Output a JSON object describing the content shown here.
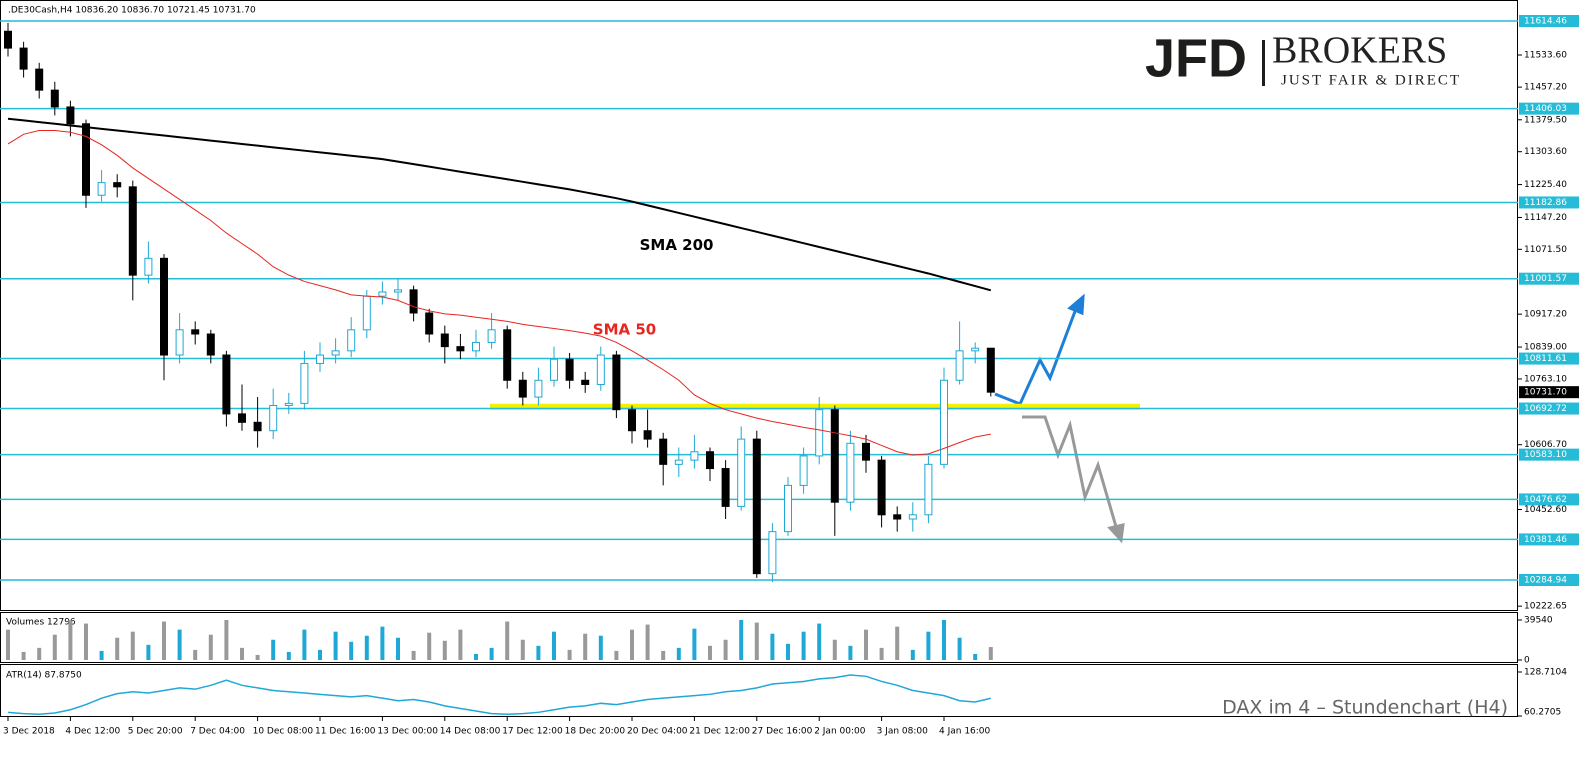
{
  "logo": {
    "name": "JFD",
    "brand": "BROKERS",
    "tagline": "JUST FAIR & DIRECT"
  },
  "chart_data": [
    {
      "type": "candlestick",
      "title": ".DE30Cash,H4  10836.20 10836.70 10721.45 10731.70",
      "caption": "DAX im 4 – Stundenchart (H4)",
      "categories": [
        "3 Dec 2018",
        null,
        null,
        null,
        "4 Dec 12:00",
        null,
        null,
        null,
        "5 Dec 20:00",
        null,
        null,
        null,
        "7 Dec 04:00",
        null,
        null,
        null,
        "10 Dec 08:00",
        null,
        null,
        null,
        "11 Dec 16:00",
        null,
        null,
        null,
        "13 Dec 00:00",
        null,
        null,
        null,
        "14 Dec 08:00",
        null,
        null,
        null,
        "17 Dec 12:00",
        null,
        null,
        null,
        "18 Dec 20:00",
        null,
        null,
        null,
        "20 Dec 04:00",
        null,
        null,
        null,
        "21 Dec 12:00",
        null,
        null,
        null,
        "27 Dec 16:00",
        null,
        null,
        null,
        "2 Jan 00:00",
        null,
        null,
        null,
        "3 Jan 08:00",
        null,
        null,
        null,
        "4 Jan 16:00",
        null,
        null,
        null
      ],
      "open": [
        11590,
        11550,
        11500,
        11450,
        11410,
        11370,
        11200,
        11230,
        11220,
        11010,
        11050,
        10820,
        10880,
        10870,
        10820,
        10680,
        10660,
        10640,
        10700,
        10705,
        10800,
        10820,
        10830,
        10880,
        10960,
        10970,
        10975,
        10920,
        10870,
        10840,
        10830,
        10850,
        10880,
        10760,
        10720,
        10760,
        10810,
        10760,
        10750,
        10820,
        10690,
        10640,
        10620,
        10560,
        10570,
        10590,
        10550,
        10460,
        10620,
        10300,
        10400,
        10510,
        10580,
        10690,
        10470,
        10610,
        10570,
        10440,
        10430,
        10440,
        10560,
        10760,
        10830,
        10836.2
      ],
      "high": [
        11610,
        11565,
        11515,
        11470,
        11425,
        11380,
        11260,
        11250,
        11235,
        11090,
        11060,
        10920,
        10900,
        10880,
        10830,
        10750,
        10720,
        10740,
        10730,
        10830,
        10850,
        10860,
        10910,
        10975,
        10995,
        11000,
        10985,
        10930,
        10890,
        10870,
        10880,
        10920,
        10890,
        10780,
        10790,
        10840,
        10825,
        10780,
        10840,
        10830,
        10700,
        10690,
        10635,
        10600,
        10630,
        10600,
        10570,
        10650,
        10640,
        10420,
        10530,
        10600,
        10720,
        10700,
        10640,
        10630,
        10580,
        10460,
        10470,
        10580,
        10790,
        10900,
        10850,
        10836.7
      ],
      "low": [
        11530,
        11480,
        11430,
        11390,
        11340,
        11170,
        11185,
        11195,
        10950,
        10990,
        10760,
        10800,
        10845,
        10800,
        10650,
        10640,
        10600,
        10620,
        10680,
        10690,
        10780,
        10800,
        10815,
        10860,
        10940,
        10950,
        10900,
        10850,
        10800,
        10810,
        10815,
        10835,
        10740,
        10700,
        10700,
        10745,
        10740,
        10730,
        10735,
        10670,
        10610,
        10600,
        10510,
        10530,
        10550,
        10520,
        10430,
        10450,
        10290,
        10280,
        10390,
        10490,
        10560,
        10390,
        10450,
        10540,
        10410,
        10400,
        10400,
        10420,
        10550,
        10750,
        10800,
        10721.45
      ],
      "close": [
        11550,
        11500,
        11450,
        11410,
        11370,
        11200,
        11230,
        11220,
        11010,
        11050,
        10820,
        10880,
        10870,
        10820,
        10680,
        10660,
        10640,
        10700,
        10705,
        10800,
        10820,
        10830,
        10880,
        10960,
        10970,
        10975,
        10920,
        10870,
        10840,
        10830,
        10850,
        10880,
        10760,
        10720,
        10760,
        10810,
        10760,
        10750,
        10820,
        10690,
        10640,
        10620,
        10560,
        10570,
        10590,
        10550,
        10460,
        10620,
        10300,
        10400,
        10510,
        10580,
        10690,
        10470,
        10610,
        10570,
        10440,
        10430,
        10440,
        10560,
        10760,
        10830,
        10836.2,
        10731.7
      ],
      "up_color": "#ffffff",
      "up_stroke": "#1fa8d6",
      "down_color": "#000000",
      "series": [
        {
          "name": "SMA 200",
          "color": "#000000",
          "values": [
            11382,
            11378,
            11374,
            11370,
            11366,
            11362,
            11358,
            11354,
            11350,
            11346,
            11342,
            11338,
            11334,
            11330,
            11326,
            11322,
            11318,
            11314,
            11310,
            11306,
            11302,
            11298,
            11294,
            11290,
            11286,
            11280,
            11274,
            11268,
            11262,
            11256,
            11250,
            11244,
            11238,
            11232,
            11226,
            11220,
            11214,
            11207,
            11200,
            11193,
            11185,
            11176,
            11167,
            11158,
            11149,
            11140,
            11131,
            11122,
            11113,
            11104,
            11095,
            11086,
            11077,
            11068,
            11059,
            11050,
            11041,
            11032,
            11023,
            11014,
            11004,
            10994,
            10984,
            10974
          ]
        },
        {
          "name": "SMA 50",
          "color": "#e8251f",
          "values": [
            11322,
            11345,
            11354,
            11354,
            11350,
            11340,
            11320,
            11295,
            11265,
            11240,
            11215,
            11190,
            11165,
            11140,
            11110,
            11085,
            11060,
            11030,
            11010,
            10995,
            10985,
            10975,
            10963,
            10960,
            10958,
            10950,
            10935,
            10925,
            10918,
            10915,
            10910,
            10905,
            10900,
            10893,
            10888,
            10883,
            10878,
            10872,
            10865,
            10850,
            10830,
            10808,
            10785,
            10760,
            10725,
            10705,
            10690,
            10680,
            10670,
            10662,
            10655,
            10648,
            10642,
            10635,
            10628,
            10620,
            10605,
            10590,
            10582,
            10585,
            10598,
            10612,
            10625,
            10632
          ]
        }
      ],
      "levels": [
        11614.46,
        11406.03,
        11182.86,
        11001.57,
        10811.61,
        10692.72,
        {
          "value": 10583.1,
          "label": "10583.10"
        },
        10476.62,
        10381.46,
        10284.94
      ],
      "level_color": "#26bcd8",
      "support_zone": 10697,
      "zone_color": "#f2f200",
      "last_price": {
        "value": 10731.7,
        "label": "10731.70"
      },
      "ylim": [
        10213.6,
        11664.4
      ],
      "yticks": [
        {
          "value": 11533.6,
          "label": "11533.60"
        },
        {
          "value": 11457.2,
          "label": "11457.20"
        },
        {
          "value": 11379.5,
          "label": "11379.50"
        },
        {
          "value": 11303.6,
          "label": "11303.60"
        },
        {
          "value": 11225.4,
          "label": "11225.40"
        },
        {
          "value": 11147.2,
          "label": "11147.20"
        },
        {
          "value": 11071.5,
          "label": "11071.50"
        },
        {
          "value": 10917.2,
          "label": "10917.20"
        },
        {
          "value": 10839.0,
          "label": "10839.00"
        },
        {
          "value": 10763.1,
          "label": "10763.10"
        },
        {
          "value": 10606.7,
          "label": "10606.70"
        },
        {
          "value": 10452.6,
          "label": "10452.60"
        },
        10222.65
      ]
    },
    {
      "type": "bar",
      "title": "Volumes 12796",
      "color": "#1fa8d6",
      "alt_color": "#999999",
      "values": [
        30000,
        8000,
        12000,
        25000,
        39000,
        36000,
        9000,
        22000,
        28000,
        15000,
        38000,
        30000,
        10000,
        25000,
        39540,
        12000,
        5000,
        20000,
        8000,
        30000,
        10000,
        28000,
        18000,
        24000,
        33000,
        22000,
        9000,
        27000,
        19000,
        30000,
        6000,
        12000,
        38000,
        20000,
        14000,
        28000,
        10000,
        26000,
        24000,
        9000,
        30000,
        35000,
        9000,
        12000,
        31000,
        14000,
        20000,
        39540,
        37000,
        26000,
        16000,
        28000,
        36000,
        20000,
        14000,
        30000,
        12000,
        33000,
        10000,
        28000,
        39540,
        22000,
        6000,
        12796
      ],
      "ylim": [
        0,
        39540
      ],
      "yticks": [
        0,
        39540
      ]
    },
    {
      "type": "line",
      "title": "ATR(14) 87.8750",
      "color": "#1fa8d6",
      "values": [
        66,
        64,
        63,
        65,
        70,
        78,
        88,
        95,
        98,
        96,
        100,
        104,
        102,
        108,
        116,
        108,
        104,
        100,
        98,
        96,
        94,
        92,
        90,
        92,
        88,
        84,
        86,
        82,
        76,
        72,
        68,
        64,
        63,
        64,
        66,
        70,
        74,
        76,
        80,
        78,
        82,
        86,
        88,
        90,
        92,
        94,
        98,
        100,
        104,
        110,
        112,
        114,
        118,
        120,
        124,
        122,
        114,
        108,
        100,
        96,
        92,
        84,
        82,
        87.875
      ],
      "ylim": [
        60.2705,
        128.7104
      ],
      "yticks": [
        60.2705,
        128.7104
      ]
    }
  ]
}
